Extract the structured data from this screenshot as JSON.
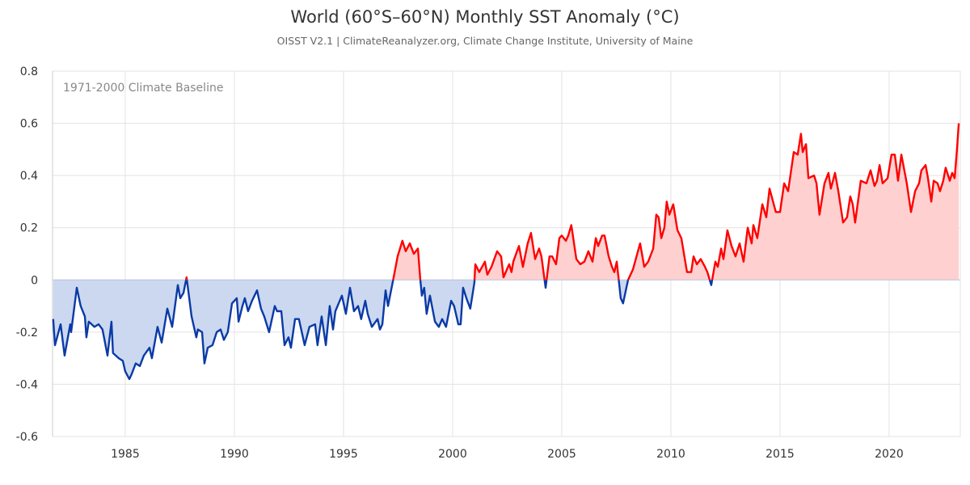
{
  "chart_data": {
    "type": "area",
    "title": "World (60°S–60°N) Monthly SST Anomaly (°C)",
    "subtitle": "OISST V2.1 | ClimateReanalyzer.org, Climate Change Institute, University of Maine",
    "annotation": "1971-2000 Climate Baseline",
    "xlabel": "",
    "ylabel": "",
    "xlim": [
      1981.67,
      2023.26
    ],
    "ylim": [
      -0.6,
      0.8
    ],
    "x_ticks": [
      1985,
      1990,
      1995,
      2000,
      2005,
      2010,
      2015,
      2020
    ],
    "y_ticks": [
      -0.6,
      -0.4,
      -0.2,
      0,
      0.2,
      0.4,
      0.6,
      0.8
    ],
    "y_tick_labels": [
      "-0.6",
      "-0.4",
      "-0.2",
      "0",
      "0.2",
      "0.4",
      "0.6",
      "0.8"
    ],
    "grid": true,
    "legend": "none",
    "colors": {
      "positive_line": "#ff0000",
      "positive_fill": "#ffd0d0",
      "negative_line": "#0a3aa6",
      "negative_fill": "#cbd8ef",
      "grid": "#e3e3e3"
    },
    "x": [
      1981.7,
      1981.78,
      1982.04,
      1982.22,
      1982.48,
      1982.52,
      1982.78,
      1982.96,
      1983.15,
      1983.22,
      1983.33,
      1983.59,
      1983.78,
      1983.96,
      1984.19,
      1984.37,
      1984.44,
      1984.7,
      1984.89,
      1985.0,
      1985.19,
      1985.3,
      1985.48,
      1985.67,
      1985.85,
      1986.11,
      1986.22,
      1986.48,
      1986.67,
      1986.93,
      1987.15,
      1987.41,
      1987.52,
      1987.67,
      1987.81,
      1988.04,
      1988.26,
      1988.33,
      1988.52,
      1988.63,
      1988.78,
      1989.0,
      1989.19,
      1989.37,
      1989.52,
      1989.7,
      1989.89,
      1990.11,
      1990.19,
      1990.37,
      1990.48,
      1990.63,
      1990.81,
      1991.04,
      1991.22,
      1991.37,
      1991.59,
      1991.85,
      1991.96,
      1992.15,
      1992.3,
      1992.48,
      1992.59,
      1992.78,
      1992.96,
      1993.22,
      1993.44,
      1993.7,
      1993.81,
      1994.0,
      1994.19,
      1994.37,
      1994.52,
      1994.63,
      1994.93,
      1995.11,
      1995.3,
      1995.48,
      1995.67,
      1995.81,
      1996.0,
      1996.11,
      1996.3,
      1996.56,
      1996.67,
      1996.78,
      1996.93,
      1997.04,
      1997.3,
      1997.48,
      1997.7,
      1997.85,
      1998.04,
      1998.22,
      1998.41,
      1998.52,
      1998.59,
      1998.7,
      1998.81,
      1998.96,
      1999.19,
      1999.37,
      1999.52,
      1999.7,
      1999.93,
      2000.07,
      2000.26,
      2000.37,
      2000.48,
      2000.63,
      2000.81,
      2001.0,
      2001.04,
      2001.22,
      2001.48,
      2001.59,
      2001.78,
      2002.04,
      2002.22,
      2002.33,
      2002.59,
      2002.7,
      2002.78,
      2003.04,
      2003.22,
      2003.44,
      2003.59,
      2003.78,
      2003.96,
      2004.07,
      2004.26,
      2004.44,
      2004.56,
      2004.74,
      2004.89,
      2005.0,
      2005.19,
      2005.3,
      2005.44,
      2005.67,
      2005.85,
      2006.04,
      2006.22,
      2006.41,
      2006.56,
      2006.67,
      2006.85,
      2006.96,
      2007.15,
      2007.3,
      2007.41,
      2007.52,
      2007.7,
      2007.81,
      2008.04,
      2008.26,
      2008.59,
      2008.78,
      2008.96,
      2009.19,
      2009.33,
      2009.44,
      2009.56,
      2009.7,
      2009.81,
      2009.93,
      2010.11,
      2010.3,
      2010.48,
      2010.74,
      2010.93,
      2011.04,
      2011.19,
      2011.37,
      2011.56,
      2011.67,
      2011.85,
      2012.04,
      2012.15,
      2012.3,
      2012.41,
      2012.59,
      2012.78,
      2012.96,
      2013.15,
      2013.33,
      2013.52,
      2013.7,
      2013.78,
      2013.96,
      2014.19,
      2014.37,
      2014.52,
      2014.81,
      2015.0,
      2015.19,
      2015.37,
      2015.63,
      2015.81,
      2015.96,
      2016.04,
      2016.19,
      2016.3,
      2016.56,
      2016.67,
      2016.81,
      2017.04,
      2017.22,
      2017.33,
      2017.52,
      2017.67,
      2017.89,
      2018.07,
      2018.22,
      2018.33,
      2018.44,
      2018.7,
      2018.96,
      2019.15,
      2019.33,
      2019.44,
      2019.56,
      2019.7,
      2019.93,
      2020.11,
      2020.26,
      2020.41,
      2020.56,
      2020.81,
      2021.0,
      2021.19,
      2021.37,
      2021.48,
      2021.67,
      2021.78,
      2021.93,
      2022.04,
      2022.22,
      2022.33,
      2022.48,
      2022.59,
      2022.78,
      2022.89,
      2023.0,
      2023.11,
      2023.19
    ],
    "values": [
      -0.15,
      -0.25,
      -0.17,
      -0.29,
      -0.17,
      -0.2,
      -0.03,
      -0.1,
      -0.14,
      -0.22,
      -0.16,
      -0.18,
      -0.17,
      -0.19,
      -0.29,
      -0.16,
      -0.28,
      -0.3,
      -0.31,
      -0.35,
      -0.38,
      -0.36,
      -0.32,
      -0.33,
      -0.29,
      -0.26,
      -0.3,
      -0.18,
      -0.24,
      -0.11,
      -0.18,
      -0.02,
      -0.07,
      -0.05,
      0.01,
      -0.14,
      -0.22,
      -0.19,
      -0.2,
      -0.32,
      -0.26,
      -0.25,
      -0.2,
      -0.19,
      -0.23,
      -0.2,
      -0.09,
      -0.07,
      -0.16,
      -0.1,
      -0.07,
      -0.12,
      -0.08,
      -0.04,
      -0.11,
      -0.14,
      -0.2,
      -0.1,
      -0.12,
      -0.12,
      -0.25,
      -0.22,
      -0.26,
      -0.15,
      -0.15,
      -0.25,
      -0.18,
      -0.17,
      -0.25,
      -0.14,
      -0.25,
      -0.1,
      -0.19,
      -0.12,
      -0.06,
      -0.13,
      -0.03,
      -0.12,
      -0.1,
      -0.15,
      -0.08,
      -0.13,
      -0.18,
      -0.15,
      -0.19,
      -0.17,
      -0.04,
      -0.1,
      0.01,
      0.09,
      0.15,
      0.11,
      0.14,
      0.1,
      0.12,
      0.0,
      -0.06,
      -0.03,
      -0.13,
      -0.06,
      -0.16,
      -0.18,
      -0.15,
      -0.18,
      -0.08,
      -0.1,
      -0.17,
      -0.17,
      -0.03,
      -0.07,
      -0.11,
      -0.01,
      0.06,
      0.03,
      0.07,
      0.02,
      0.05,
      0.11,
      0.09,
      0.01,
      0.06,
      0.03,
      0.07,
      0.13,
      0.05,
      0.14,
      0.18,
      0.08,
      0.12,
      0.09,
      -0.03,
      0.09,
      0.09,
      0.06,
      0.16,
      0.17,
      0.15,
      0.17,
      0.21,
      0.08,
      0.06,
      0.07,
      0.11,
      0.07,
      0.16,
      0.13,
      0.17,
      0.17,
      0.09,
      0.05,
      0.03,
      0.07,
      -0.07,
      -0.09,
      0.0,
      0.04,
      0.14,
      0.05,
      0.07,
      0.12,
      0.25,
      0.24,
      0.16,
      0.2,
      0.3,
      0.25,
      0.29,
      0.19,
      0.16,
      0.03,
      0.03,
      0.09,
      0.06,
      0.08,
      0.05,
      0.03,
      -0.02,
      0.07,
      0.05,
      0.12,
      0.08,
      0.19,
      0.13,
      0.09,
      0.14,
      0.07,
      0.2,
      0.14,
      0.21,
      0.16,
      0.29,
      0.24,
      0.35,
      0.26,
      0.26,
      0.37,
      0.34,
      0.49,
      0.48,
      0.56,
      0.49,
      0.52,
      0.39,
      0.4,
      0.37,
      0.25,
      0.37,
      0.41,
      0.35,
      0.41,
      0.34,
      0.22,
      0.24,
      0.32,
      0.29,
      0.22,
      0.38,
      0.37,
      0.42,
      0.36,
      0.38,
      0.44,
      0.37,
      0.39,
      0.48,
      0.48,
      0.38,
      0.48,
      0.37,
      0.26,
      0.34,
      0.37,
      0.42,
      0.44,
      0.39,
      0.3,
      0.38,
      0.37,
      0.34,
      0.38,
      0.43,
      0.38,
      0.41,
      0.39,
      0.5,
      0.6
    ]
  }
}
